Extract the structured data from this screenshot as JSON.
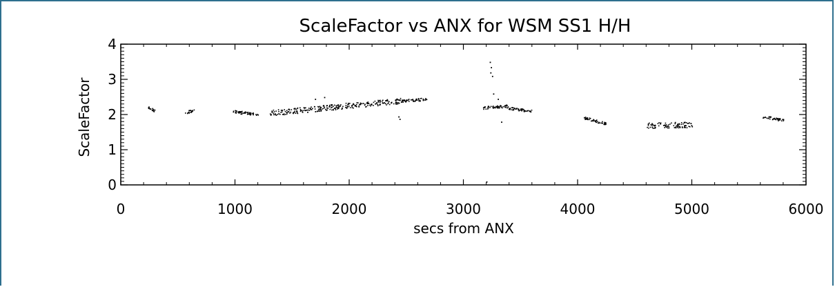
{
  "chart_data": {
    "type": "scatter",
    "title": "ScaleFactor vs ANX for WSM SS1 H/H",
    "xlabel": "secs from ANX",
    "ylabel": "ScaleFactor",
    "xlim": [
      0,
      6000
    ],
    "ylim": [
      0,
      4
    ],
    "x_ticks": [
      0,
      1000,
      2000,
      3000,
      4000,
      5000,
      6000
    ],
    "y_ticks": [
      0,
      1,
      2,
      3,
      4
    ],
    "grid": false,
    "legend": "none",
    "point_color": "#000000",
    "segments": [
      {
        "x_start": 230,
        "x_end": 300,
        "y_start": 2.22,
        "y_end": 2.1
      },
      {
        "x_start": 560,
        "x_end": 640,
        "y_start": 2.05,
        "y_end": 2.15
      },
      {
        "x_start": 980,
        "x_end": 1200,
        "y_start": 2.1,
        "y_end": 2.0
      },
      {
        "x_start": 1300,
        "x_end": 2050,
        "y_start": 2.05,
        "y_end": 2.28
      },
      {
        "x_start": 2050,
        "x_end": 2450,
        "y_start": 2.28,
        "y_end": 2.4
      },
      {
        "x_start": 2450,
        "x_end": 2680,
        "y_start": 2.4,
        "y_end": 2.45
      },
      {
        "x_start": 3170,
        "x_end": 3380,
        "y_start": 2.2,
        "y_end": 2.25
      },
      {
        "x_start": 3380,
        "x_end": 3600,
        "y_start": 2.2,
        "y_end": 2.1
      },
      {
        "x_start": 4050,
        "x_end": 4250,
        "y_start": 1.92,
        "y_end": 1.75
      },
      {
        "x_start": 4600,
        "x_end": 5000,
        "y_start": 1.7,
        "y_end": 1.72
      },
      {
        "x_start": 5620,
        "x_end": 5800,
        "y_start": 1.95,
        "y_end": 1.85
      }
    ],
    "outliers": [
      {
        "x": 3230,
        "y": 3.5
      },
      {
        "x": 3240,
        "y": 3.35
      },
      {
        "x": 3235,
        "y": 3.2
      },
      {
        "x": 3250,
        "y": 3.1
      },
      {
        "x": 3260,
        "y": 2.6
      },
      {
        "x": 3300,
        "y": 2.45
      },
      {
        "x": 3330,
        "y": 1.8
      },
      {
        "x": 3200,
        "y": 0.1
      },
      {
        "x": 2430,
        "y": 1.95
      },
      {
        "x": 2440,
        "y": 1.88
      },
      {
        "x": 1780,
        "y": 2.5
      },
      {
        "x": 1700,
        "y": 2.45
      }
    ]
  }
}
